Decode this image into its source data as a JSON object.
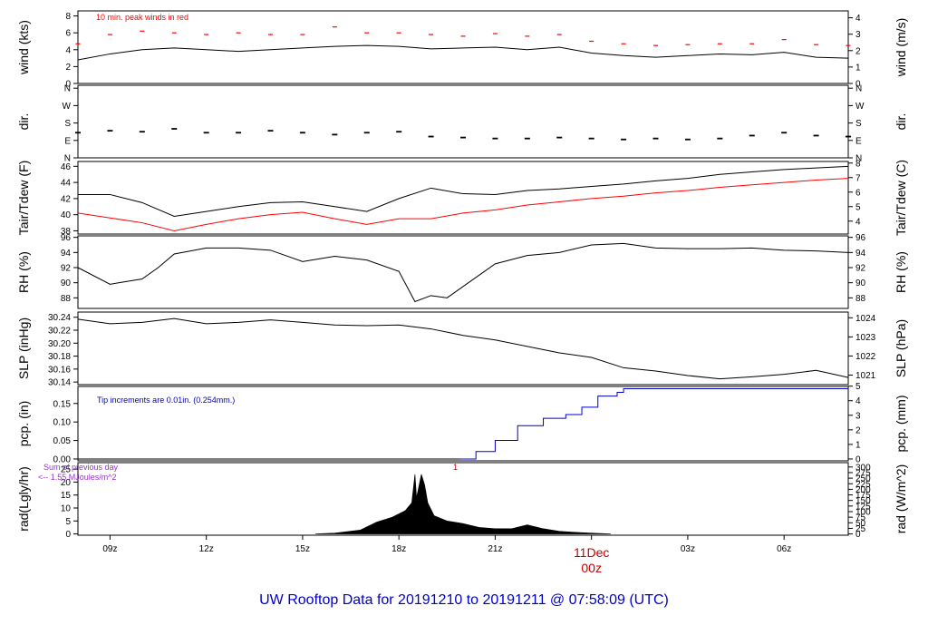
{
  "footer_title": "UW Rooftop Data for 20191210  to  20191211 @ 07:58:09  (UTC)",
  "colors": {
    "axis": "#000000",
    "series_black": "#000000",
    "red": "#ff0000",
    "blue": "#0000cc",
    "purple": "#9933cc",
    "title": "#0000cc",
    "date_marker": "#cc0000"
  },
  "x_axis": {
    "ticks": [
      {
        "hour": 9,
        "label": "09z"
      },
      {
        "hour": 12,
        "label": "12z"
      },
      {
        "hour": 15,
        "label": "15z"
      },
      {
        "hour": 18,
        "label": "18z"
      },
      {
        "hour": 21,
        "label": "21z"
      },
      {
        "hour": 24,
        "label": "00z"
      },
      {
        "hour": 27,
        "label": "03z"
      },
      {
        "hour": 30,
        "label": "06z"
      }
    ],
    "date_marker": {
      "hour": 24,
      "line1": "11Dec",
      "line2": "00z"
    },
    "range_hours": [
      8.0,
      32.0
    ]
  },
  "chart_data": [
    {
      "id": "wind",
      "type": "line",
      "ylabel_left": "wind (kts)",
      "ylabel_right": "wind (m/s)",
      "left_ticks": [
        0,
        2,
        4,
        6,
        8
      ],
      "left_tick_labels": [
        "0",
        "2",
        "4",
        "6",
        "8"
      ],
      "right_ticks": [
        0,
        1,
        2,
        3,
        4
      ],
      "right_tick_labels": [
        "0",
        "1",
        "2",
        "3",
        "4"
      ],
      "ylim": [
        0,
        8.6
      ],
      "right_ylim": [
        0,
        4.42
      ],
      "annotation": "10 min. peak winds in red",
      "series": [
        {
          "role": "main",
          "color": "#000000",
          "x": [
            8.0,
            9.0,
            10.0,
            11.0,
            12.0,
            13.0,
            14.0,
            15.0,
            16.0,
            17.0,
            18.0,
            19.0,
            20.0,
            21.0,
            22.0,
            23.0,
            24.0,
            25.0,
            26.0,
            27.0,
            28.0,
            29.0,
            30.0,
            31.0,
            32.0
          ],
          "y": [
            2.8,
            3.5,
            4.0,
            4.2,
            4.0,
            3.8,
            4.0,
            4.2,
            4.4,
            4.5,
            4.4,
            4.1,
            4.2,
            4.3,
            4.0,
            4.3,
            3.6,
            3.3,
            3.1,
            3.3,
            3.5,
            3.4,
            3.7,
            3.1,
            3.0
          ]
        },
        {
          "role": "peaks",
          "color": "#ff0000",
          "x": [
            8.0,
            9.0,
            10.0,
            11.0,
            12.0,
            13.0,
            14.0,
            15.0,
            16.0,
            17.0,
            18.0,
            19.0,
            20.0,
            21.0,
            22.0,
            23.0,
            24.0,
            25.0,
            26.0,
            27.0,
            28.0,
            29.0,
            30.0,
            31.0,
            32.0
          ],
          "y": [
            4.7,
            5.8,
            6.2,
            6.0,
            5.8,
            6.0,
            5.8,
            5.8,
            6.7,
            6.0,
            6.0,
            5.8,
            5.6,
            5.9,
            5.6,
            5.8,
            5.0,
            4.7,
            4.5,
            4.6,
            4.7,
            4.7,
            5.2,
            4.6,
            4.5
          ]
        }
      ]
    },
    {
      "id": "dir",
      "type": "scatter",
      "ylabel_left": "dir.",
      "ylabel_right": "dir.",
      "left_ticks": [
        0,
        90,
        180,
        270,
        360
      ],
      "left_tick_labels": [
        "N",
        "E",
        "S",
        "W",
        "N"
      ],
      "right_ticks": [
        0,
        90,
        180,
        270,
        360
      ],
      "right_tick_labels": [
        "N",
        "E",
        "S",
        "W",
        "N"
      ],
      "ylim": [
        0,
        375
      ],
      "right_ylim": [
        0,
        375
      ],
      "series": [
        {
          "role": "main",
          "color": "#000000",
          "x": [
            8.0,
            9.0,
            10.0,
            11.0,
            12.0,
            13.0,
            14.0,
            15.0,
            16.0,
            17.0,
            18.0,
            19.0,
            20.0,
            21.0,
            22.0,
            23.0,
            24.0,
            25.0,
            26.0,
            27.0,
            28.0,
            29.0,
            30.0,
            31.0,
            32.0
          ],
          "y": [
            130,
            140,
            135,
            150,
            130,
            130,
            140,
            130,
            120,
            130,
            135,
            110,
            105,
            100,
            100,
            105,
            100,
            95,
            100,
            95,
            100,
            115,
            130,
            115,
            110
          ]
        }
      ]
    },
    {
      "id": "temp",
      "type": "line",
      "ylabel_left": "Tair/Tdew (F)",
      "ylabel_right": "Tair/Tdew (C)",
      "left_ticks": [
        38,
        40,
        42,
        44,
        46
      ],
      "left_tick_labels": [
        "38",
        "40",
        "42",
        "44",
        "46"
      ],
      "right_ticks": [
        4,
        5,
        6,
        7,
        8
      ],
      "right_tick_labels": [
        "4",
        "5",
        "6",
        "7",
        "8"
      ],
      "ylim": [
        37.6,
        46.6
      ],
      "right_ylim": [
        3.11,
        8.11
      ],
      "series": [
        {
          "role": "air",
          "color": "#000000",
          "x": [
            8.0,
            9.0,
            10.0,
            11.0,
            12.0,
            13.0,
            14.0,
            15.0,
            16.0,
            17.0,
            18.0,
            19.0,
            20.0,
            21.0,
            22.0,
            23.0,
            24.0,
            25.0,
            26.0,
            27.0,
            28.0,
            29.0,
            30.0,
            31.0,
            32.0
          ],
          "y": [
            42.5,
            42.5,
            41.5,
            39.8,
            40.4,
            41.0,
            41.5,
            41.6,
            41.0,
            40.4,
            42.0,
            43.3,
            42.6,
            42.5,
            43.0,
            43.2,
            43.5,
            43.8,
            44.2,
            44.5,
            45.0,
            45.3,
            45.6,
            45.8,
            46.0
          ]
        },
        {
          "role": "dew",
          "color": "#ff0000",
          "x": [
            8.0,
            9.0,
            10.0,
            11.0,
            12.0,
            13.0,
            14.0,
            15.0,
            16.0,
            17.0,
            18.0,
            19.0,
            20.0,
            21.0,
            22.0,
            23.0,
            24.0,
            25.0,
            26.0,
            27.0,
            28.0,
            29.0,
            30.0,
            31.0,
            32.0
          ],
          "y": [
            40.2,
            39.6,
            39.0,
            38.0,
            38.8,
            39.5,
            40.0,
            40.3,
            39.5,
            38.8,
            39.5,
            39.5,
            40.2,
            40.6,
            41.2,
            41.6,
            42.0,
            42.3,
            42.7,
            43.0,
            43.4,
            43.7,
            44.0,
            44.3,
            44.5
          ]
        }
      ]
    },
    {
      "id": "rh",
      "type": "line",
      "ylabel_left": "RH (%)",
      "ylabel_right": "RH (%)",
      "left_ticks": [
        88,
        90,
        92,
        94,
        96
      ],
      "left_tick_labels": [
        "88",
        "90",
        "92",
        "94",
        "96"
      ],
      "right_ticks": [
        88,
        90,
        92,
        94,
        96
      ],
      "right_tick_labels": [
        "88",
        "90",
        "92",
        "94",
        "96"
      ],
      "ylim": [
        86.6,
        96.2
      ],
      "right_ylim": [
        86.6,
        96.2
      ],
      "series": [
        {
          "role": "main",
          "color": "#000000",
          "x": [
            8.0,
            9.0,
            10.0,
            10.5,
            11.0,
            12.0,
            13.0,
            14.0,
            15.0,
            16.0,
            17.0,
            18.0,
            18.5,
            19.0,
            19.5,
            20.0,
            21.0,
            22.0,
            23.0,
            24.0,
            25.0,
            26.0,
            27.0,
            28.0,
            29.0,
            30.0,
            31.0,
            32.0
          ],
          "y": [
            92.0,
            89.8,
            90.5,
            92.0,
            93.8,
            94.6,
            94.6,
            94.3,
            92.8,
            93.5,
            93.0,
            91.5,
            87.5,
            88.3,
            88.0,
            89.5,
            92.5,
            93.6,
            94.0,
            95.0,
            95.2,
            94.6,
            94.5,
            94.5,
            94.6,
            94.3,
            94.2,
            94.0
          ]
        }
      ]
    },
    {
      "id": "slp",
      "type": "line",
      "ylabel_left": "SLP (inHg)",
      "ylabel_right": "SLP (hPa)",
      "left_ticks": [
        30.14,
        30.16,
        30.18,
        30.2,
        30.22,
        30.24
      ],
      "left_tick_labels": [
        "30.14",
        "30.16",
        "30.18",
        "30.20",
        "30.22",
        "30.24"
      ],
      "right_ticks": [
        1021,
        1022,
        1023,
        1024
      ],
      "right_tick_labels": [
        "1021",
        "1022",
        "1023",
        "1024"
      ],
      "ylim": [
        30.136,
        30.248
      ],
      "right_ylim": [
        1020.5,
        1024.3
      ],
      "series": [
        {
          "role": "main",
          "color": "#000000",
          "x": [
            8.0,
            9.0,
            10.0,
            11.0,
            12.0,
            13.0,
            14.0,
            15.0,
            16.0,
            17.0,
            18.0,
            19.0,
            20.0,
            21.0,
            22.0,
            23.0,
            24.0,
            25.0,
            26.0,
            27.0,
            28.0,
            29.0,
            30.0,
            31.0,
            32.0
          ],
          "y": [
            30.237,
            30.23,
            30.232,
            30.238,
            30.23,
            30.232,
            30.236,
            30.232,
            30.228,
            30.227,
            30.228,
            30.222,
            30.212,
            30.205,
            30.195,
            30.185,
            30.178,
            30.162,
            30.157,
            30.15,
            30.145,
            30.148,
            30.152,
            30.158,
            30.147
          ]
        }
      ]
    },
    {
      "id": "pcp",
      "type": "line",
      "ylabel_left": "pcp. (in)",
      "ylabel_right": "pcp. (mm)",
      "left_ticks": [
        0.0,
        0.05,
        0.1,
        0.15
      ],
      "left_tick_labels": [
        "0.00",
        "0.05",
        "0.10",
        "0.15"
      ],
      "right_ticks": [
        0,
        1,
        2,
        3,
        4,
        5
      ],
      "right_tick_labels": [
        "0",
        "1",
        "2",
        "3",
        "4",
        "5"
      ],
      "ylim": [
        -0.005,
        0.196
      ],
      "right_ylim": [
        -0.127,
        4.98
      ],
      "annotation": "Tip increments are 0.01in. (0.254mm.)",
      "series": [
        {
          "role": "main",
          "color": "#0000cc",
          "x": [
            8.0,
            19.9,
            20.4,
            21.0,
            21.7,
            22.5,
            23.2,
            23.7,
            24.2,
            24.8,
            25.0,
            32.0
          ],
          "y": [
            0.0,
            0.0,
            0.02,
            0.05,
            0.09,
            0.11,
            0.12,
            0.14,
            0.17,
            0.18,
            0.19,
            0.19
          ]
        }
      ]
    },
    {
      "id": "rad",
      "type": "area",
      "ylabel_left": "rad(Lgly/hr)",
      "ylabel_right": "rad (W/m^2)",
      "left_ticks": [
        0,
        5,
        10,
        15,
        20,
        25
      ],
      "left_tick_labels": [
        "0",
        "5",
        "10",
        "15",
        "20",
        "25"
      ],
      "right_ticks": [
        0,
        25,
        50,
        75,
        100,
        125,
        150,
        175,
        200,
        225,
        250,
        275,
        300
      ],
      "right_tick_labels": [
        "0",
        "25",
        "50",
        "75",
        "100",
        "125",
        "150",
        "175",
        "200",
        "225",
        "250",
        "275",
        "300"
      ],
      "ylim": [
        -0.5,
        27.5
      ],
      "right_ylim": [
        -5.8,
        319.6
      ],
      "annotation_line1": "Sum of previous day",
      "annotation_line2": "<-- 1.55 MJoules/m^2",
      "marker_label": "1",
      "series": [
        {
          "role": "main",
          "color": "#000000",
          "x": [
            15.4,
            16.0,
            16.8,
            17.3,
            17.8,
            18.2,
            18.4,
            18.5,
            18.55,
            18.6,
            18.7,
            18.8,
            18.9,
            19.1,
            19.5,
            20.0,
            20.5,
            21.0,
            21.5,
            22.0,
            22.5,
            23.0,
            23.5,
            24.0,
            24.6
          ],
          "y": [
            0.0,
            0.3,
            1.5,
            4.5,
            6.5,
            9.0,
            12.0,
            23.0,
            14.0,
            17.0,
            23.0,
            19.0,
            12.0,
            7.0,
            5.0,
            4.0,
            2.5,
            2.0,
            2.0,
            3.5,
            2.0,
            1.0,
            0.6,
            0.3,
            0.0
          ]
        }
      ]
    }
  ]
}
